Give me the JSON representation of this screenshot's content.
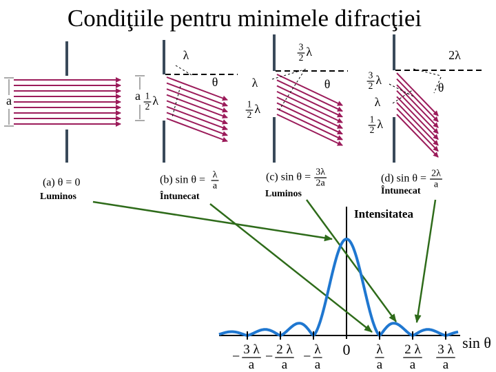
{
  "title": "Condiţiile pentru minimele  difracţiei",
  "panels": [
    {
      "labels": [
        {
          "text": "a"
        }
      ],
      "caption": {
        "text": "(a) θ = 0"
      },
      "result": "Luminos"
    },
    {
      "labels": [
        {
          "text": "λ"
        },
        {
          "text": "θ"
        },
        {
          "text": "a"
        },
        {
          "num": "1",
          "den": "2",
          "after": "λ"
        }
      ],
      "caption": {
        "text": "(b) sin θ =",
        "num": "λ",
        "den": "a"
      },
      "result": "Întunecat"
    },
    {
      "labels": [
        {
          "num": "3",
          "den": "2",
          "after": "λ"
        },
        {
          "text": "λ"
        },
        {
          "text": "θ"
        },
        {
          "num": "1",
          "den": "2",
          "after": "λ"
        }
      ],
      "caption": {
        "text": "(c) sin θ =",
        "num": "3λ",
        "den": "2a"
      },
      "result": "Luminos"
    },
    {
      "labels": [
        {
          "text": "2λ"
        },
        {
          "num": "3",
          "den": "2",
          "after": "λ"
        },
        {
          "text": "θ"
        },
        {
          "text": "λ"
        },
        {
          "num": "1",
          "den": "2",
          "after": "λ"
        }
      ],
      "caption": {
        "text": "(d) sin θ =",
        "num": "2λ",
        "den": "a"
      },
      "result": "Întunecat"
    }
  ],
  "graph": {
    "y_label": "Intensitatea",
    "x_label": "sin θ",
    "ticks": [
      {
        "sign": "−",
        "num": "3 λ",
        "den": "a"
      },
      {
        "sign": "−",
        "num": "2 λ",
        "den": "a"
      },
      {
        "sign": "−",
        "num": "λ",
        "den": "a"
      },
      {
        "text": "0"
      },
      {
        "num": "λ",
        "den": "a"
      },
      {
        "num": "2 λ",
        "den": "a"
      },
      {
        "num": "3 λ",
        "den": "a"
      }
    ]
  }
}
